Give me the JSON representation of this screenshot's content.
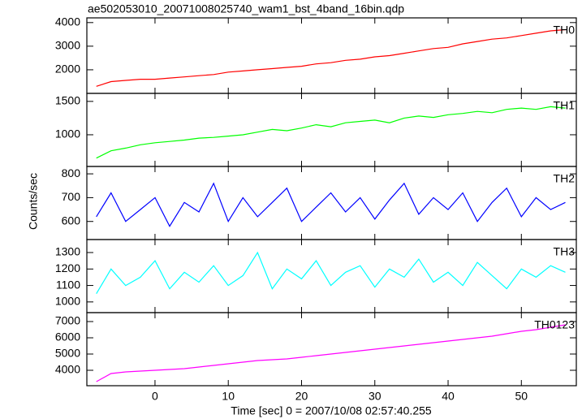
{
  "title": "ae502053010_20071008025740_wam1_bst_4band_16bin.qdp",
  "x_label": "Time [sec] 0 = 2007/10/08 02:57:40.255",
  "y_label": "Counts/sec",
  "chart_data": [
    {
      "type": "line",
      "x": [
        -8,
        -6,
        -4,
        -2,
        0,
        2,
        4,
        6,
        8,
        10,
        12,
        14,
        16,
        18,
        20,
        22,
        24,
        26,
        28,
        30,
        32,
        34,
        36,
        38,
        40,
        42,
        44,
        46,
        48,
        50,
        52,
        54,
        56
      ],
      "series": [
        {
          "name": "TH0",
          "color": "#ff0000",
          "values": [
            1300,
            1500,
            1550,
            1600,
            1600,
            1650,
            1700,
            1750,
            1800,
            1900,
            1950,
            2000,
            2050,
            2100,
            2150,
            2250,
            2300,
            2400,
            2450,
            2550,
            2600,
            2700,
            2800,
            2900,
            2950,
            3100,
            3200,
            3300,
            3350,
            3450,
            3550,
            3650,
            3700
          ]
        }
      ],
      "xlim": [
        -9.3,
        57.5
      ],
      "xticks": [
        0,
        10,
        20,
        30,
        40,
        50
      ],
      "ylim": [
        1000,
        4200
      ],
      "yticks": [
        2000,
        3000,
        4000
      ]
    },
    {
      "type": "line",
      "x": [
        -8,
        -6,
        -4,
        -2,
        0,
        2,
        4,
        6,
        8,
        10,
        12,
        14,
        16,
        18,
        20,
        22,
        24,
        26,
        28,
        30,
        32,
        34,
        36,
        38,
        40,
        42,
        44,
        46,
        48,
        50,
        52,
        54,
        56
      ],
      "series": [
        {
          "name": "TH1",
          "color": "#00ff00",
          "values": [
            650,
            760,
            800,
            850,
            880,
            900,
            920,
            950,
            960,
            980,
            1000,
            1040,
            1080,
            1060,
            1100,
            1150,
            1120,
            1180,
            1200,
            1220,
            1180,
            1250,
            1280,
            1260,
            1300,
            1320,
            1350,
            1330,
            1380,
            1400,
            1380,
            1420,
            1400
          ]
        }
      ],
      "xlim": [
        -9.3,
        57.5
      ],
      "xticks": [
        0,
        10,
        20,
        30,
        40,
        50
      ],
      "ylim": [
        525,
        1620
      ],
      "yticks": [
        1000,
        1500
      ]
    },
    {
      "type": "line",
      "x": [
        -8,
        -6,
        -4,
        -2,
        0,
        2,
        4,
        6,
        8,
        10,
        12,
        14,
        16,
        18,
        20,
        22,
        24,
        26,
        28,
        30,
        32,
        34,
        36,
        38,
        40,
        42,
        44,
        46,
        48,
        50,
        52,
        54,
        56
      ],
      "series": [
        {
          "name": "TH2",
          "color": "#0000ff",
          "values": [
            620,
            720,
            600,
            650,
            700,
            580,
            680,
            640,
            760,
            600,
            700,
            620,
            680,
            740,
            600,
            660,
            720,
            640,
            700,
            610,
            690,
            760,
            630,
            700,
            650,
            720,
            600,
            680,
            740,
            620,
            700,
            650,
            680
          ]
        }
      ],
      "xlim": [
        -9.3,
        57.5
      ],
      "xticks": [
        0,
        10,
        20,
        30,
        40,
        50
      ],
      "ylim": [
        524,
        831
      ],
      "yticks": [
        600,
        700,
        800
      ]
    },
    {
      "type": "line",
      "x": [
        -8,
        -6,
        -4,
        -2,
        0,
        2,
        4,
        6,
        8,
        10,
        12,
        14,
        16,
        18,
        20,
        22,
        24,
        26,
        28,
        30,
        32,
        34,
        36,
        38,
        40,
        42,
        44,
        46,
        48,
        50,
        52,
        54,
        56
      ],
      "series": [
        {
          "name": "TH3",
          "color": "#00ffff",
          "values": [
            1050,
            1200,
            1100,
            1150,
            1250,
            1080,
            1180,
            1120,
            1220,
            1100,
            1160,
            1300,
            1080,
            1200,
            1140,
            1250,
            1100,
            1180,
            1220,
            1090,
            1200,
            1150,
            1260,
            1120,
            1180,
            1100,
            1240,
            1160,
            1080,
            1200,
            1150,
            1220,
            1180
          ]
        }
      ],
      "xlim": [
        -9.3,
        57.5
      ],
      "xticks": [
        0,
        10,
        20,
        30,
        40,
        50
      ],
      "ylim": [
        935,
        1379
      ],
      "yticks": [
        1000,
        1100,
        1200,
        1300
      ]
    },
    {
      "type": "line",
      "x": [
        -8,
        -6,
        -4,
        -2,
        0,
        2,
        4,
        6,
        8,
        10,
        12,
        14,
        16,
        18,
        20,
        22,
        24,
        26,
        28,
        30,
        32,
        34,
        36,
        38,
        40,
        42,
        44,
        46,
        48,
        50,
        52,
        54,
        56
      ],
      "series": [
        {
          "name": "TH0123",
          "color": "#ff00ff",
          "values": [
            3300,
            3800,
            3900,
            3950,
            4000,
            4050,
            4100,
            4200,
            4300,
            4400,
            4500,
            4600,
            4650,
            4700,
            4800,
            4900,
            5000,
            5100,
            5200,
            5300,
            5400,
            5500,
            5600,
            5700,
            5800,
            5900,
            6000,
            6100,
            6250,
            6400,
            6500,
            6650,
            6800
          ]
        }
      ],
      "xlim": [
        -9.3,
        57.5
      ],
      "xticks": [
        0,
        10,
        20,
        30,
        40,
        50
      ],
      "ylim": [
        3050,
        7550
      ],
      "yticks": [
        4000,
        5000,
        6000,
        7000
      ]
    }
  ]
}
